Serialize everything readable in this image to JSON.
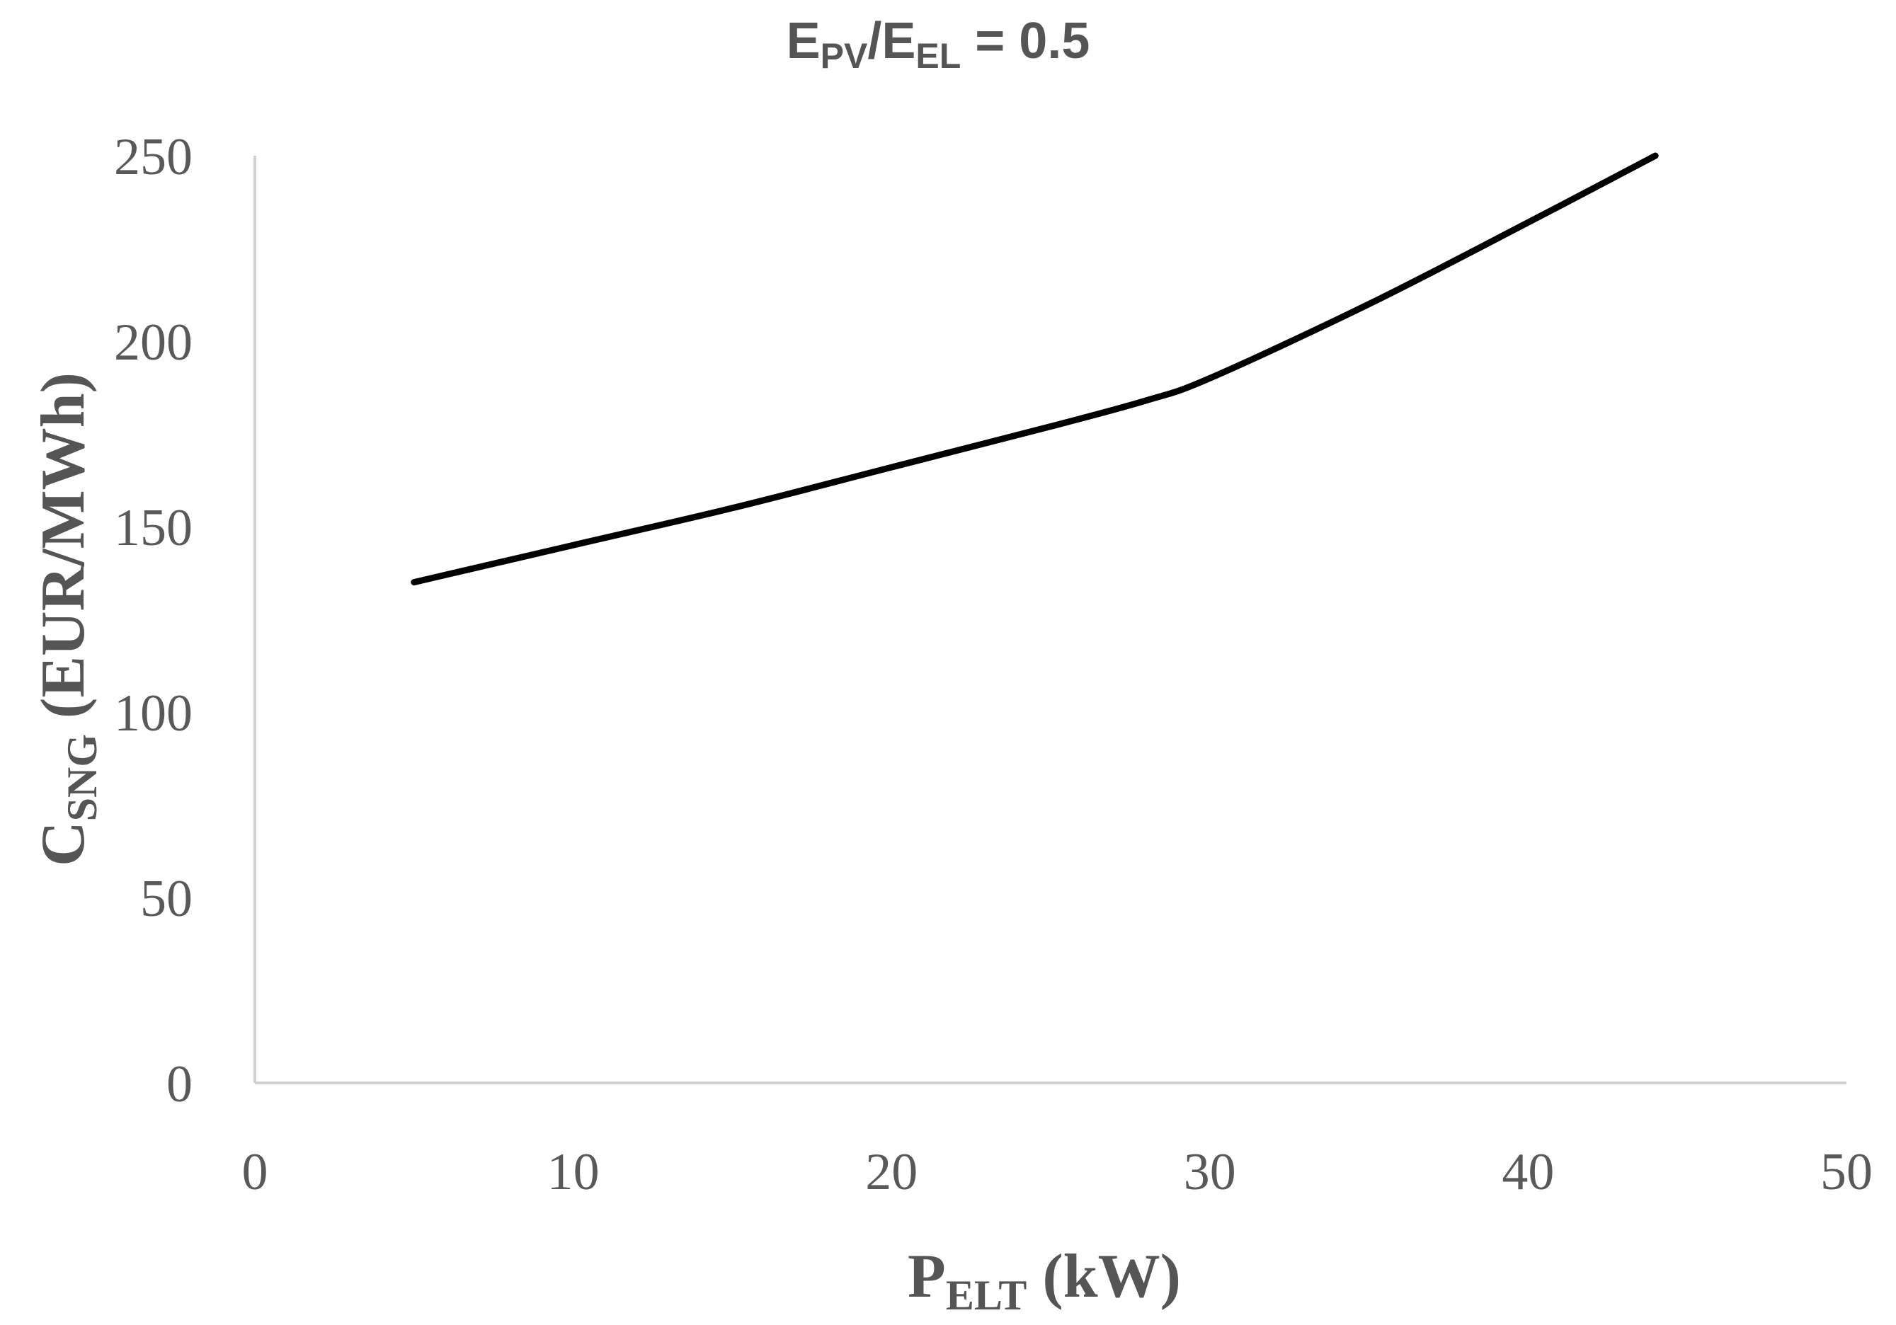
{
  "chart_data": {
    "type": "line",
    "title": {
      "main": "E",
      "sub1": "PV",
      "sep": "/E",
      "sub2": "EL",
      "tail": " = 0.5"
    },
    "xlabel": {
      "main": "P",
      "sub": "ELT",
      "tail": " (kW)"
    },
    "ylabel": {
      "main": "C",
      "sub": "SNG",
      "tail": " (EUR/MWh)"
    },
    "xlim": [
      0,
      50
    ],
    "ylim": [
      0,
      250
    ],
    "xticks": [
      0,
      10,
      20,
      30,
      40,
      50
    ],
    "yticks": [
      0,
      50,
      100,
      150,
      200,
      250
    ],
    "grid": false,
    "series": [
      {
        "name": "C_SNG",
        "color": "#000000",
        "x": [
          5,
          10,
          15,
          20,
          25,
          28,
          30,
          35,
          40,
          44
        ],
        "y": [
          135,
          145,
          155,
          166,
          177,
          184,
          190,
          210,
          232,
          250
        ]
      }
    ]
  }
}
